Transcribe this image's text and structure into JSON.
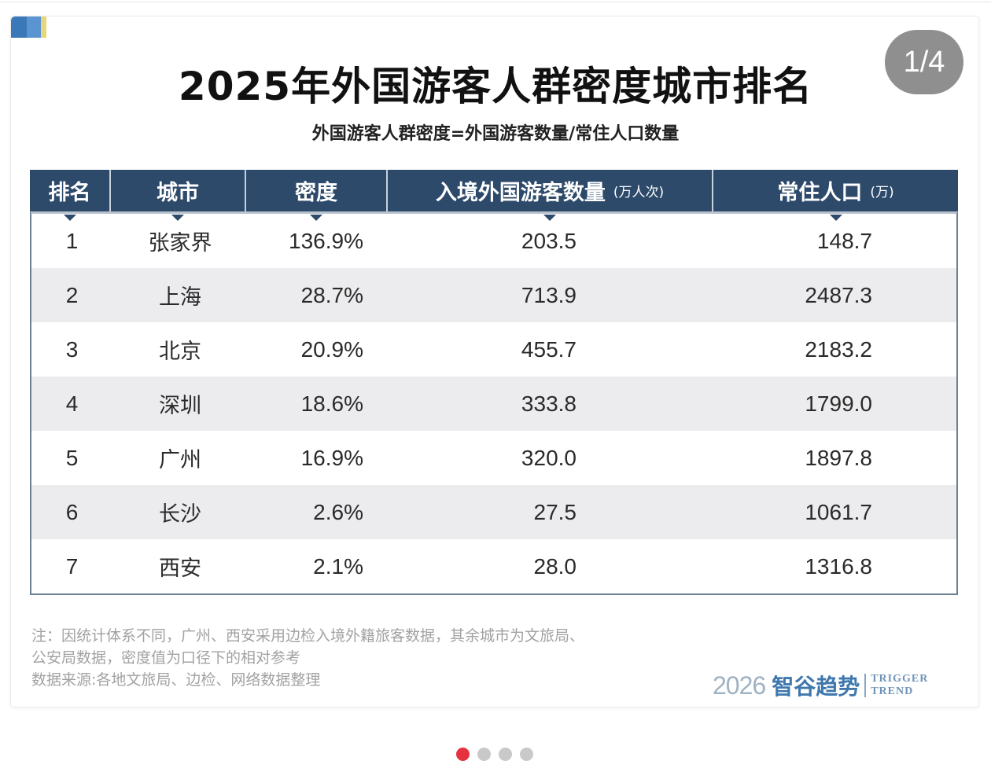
{
  "viewer": {
    "page_indicator": "1/4",
    "carousel_dots": [
      {
        "active": true
      },
      {
        "active": false
      },
      {
        "active": false
      },
      {
        "active": false
      }
    ]
  },
  "infographic": {
    "title": "2025年外国游客人群密度城市排名",
    "subtitle": "外国游客人群密度=外国游客数量/常住人口数量",
    "table": {
      "headers": [
        {
          "label": "排名",
          "unit": ""
        },
        {
          "label": "城市",
          "unit": ""
        },
        {
          "label": "密度",
          "unit": ""
        },
        {
          "label": "入境外国游客数量",
          "unit": "(万人次)"
        },
        {
          "label": "常住人口",
          "unit": "(万)"
        }
      ],
      "rows": [
        {
          "rank": "1",
          "city": "张家界",
          "density": "136.9%",
          "visitors": "203.5",
          "population": "148.7"
        },
        {
          "rank": "2",
          "city": "上海",
          "density": "28.7%",
          "visitors": "713.9",
          "population": "2487.3"
        },
        {
          "rank": "3",
          "city": "北京",
          "density": "20.9%",
          "visitors": "455.7",
          "population": "2183.2"
        },
        {
          "rank": "4",
          "city": "深圳",
          "density": "18.6%",
          "visitors": "333.8",
          "population": "1799.0"
        },
        {
          "rank": "5",
          "city": "广州",
          "density": "16.9%",
          "visitors": "320.0",
          "population": "1897.8"
        },
        {
          "rank": "6",
          "city": "长沙",
          "density": "2.6%",
          "visitors": "27.5",
          "population": "1061.7"
        },
        {
          "rank": "7",
          "city": "西安",
          "density": "2.1%",
          "visitors": "28.0",
          "population": "1316.8"
        }
      ]
    },
    "notes": {
      "line1": "注：因统计体系不同，广州、西安采用边检入境外籍旅客数据，其余城市为文旅局、",
      "line2": "公安局数据，密度值为口径下的相对参考",
      "source": "数据来源:各地文旅局、边检、网络数据整理"
    },
    "brand": {
      "year": "2026",
      "name_cn": "智谷趋势",
      "name_en_line1": "TRIGGER",
      "name_en_line2": "TREND"
    },
    "colors": {
      "header_bg": "#2d4a6b",
      "row_alt_bg": "#ececee",
      "active_dot": "#e5323f",
      "brand_blue": "#3f78ad"
    }
  }
}
